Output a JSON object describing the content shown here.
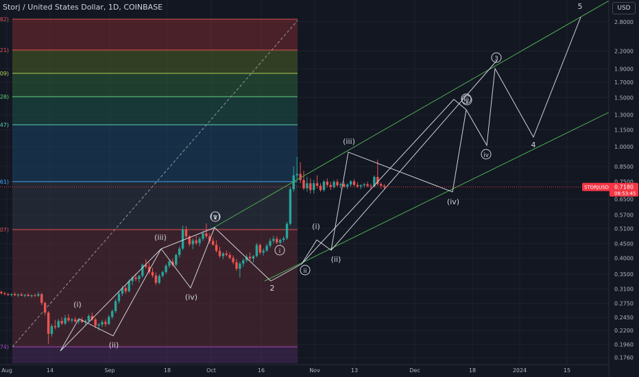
{
  "title": "Storj / United States Dollar, 1D, COINBASE",
  "currency": "USD",
  "chart_data": {
    "type": "candlestick",
    "symbol": "STORJUSD",
    "last_price": "0.7180",
    "countdown": "08:53:45",
    "y_scale": "log",
    "ylim": [
      0.166,
      3.35
    ],
    "price_ticks": [
      "2.8000",
      "2.2000",
      "1.9000",
      "1.7000",
      "1.5000",
      "1.3000",
      "1.1500",
      "1.0000",
      "0.8500",
      "0.7500",
      "0.6500",
      "0.5700",
      "0.5100",
      "0.4500",
      "0.4000",
      "0.3500",
      "0.3100",
      "0.2750",
      "0.2450",
      "0.2200",
      "0.1960",
      "0.1760"
    ],
    "date_ticks": [
      "Aug",
      "14",
      "Sep",
      "18",
      "Oct",
      "16",
      "Nov",
      "13",
      "Dec",
      "18",
      "2024",
      "15"
    ],
    "fib_labels": [
      "082)",
      "921)",
      "409)",
      "028)",
      "947)",
      "561)",
      "107)",
      "974)"
    ],
    "candles": [
      [
        0.302,
        0.306,
        0.296,
        0.299
      ],
      [
        0.299,
        0.303,
        0.294,
        0.297
      ],
      [
        0.297,
        0.3,
        0.292,
        0.295
      ],
      [
        0.295,
        0.299,
        0.291,
        0.297
      ],
      [
        0.297,
        0.301,
        0.293,
        0.294
      ],
      [
        0.294,
        0.298,
        0.29,
        0.296
      ],
      [
        0.296,
        0.3,
        0.292,
        0.293
      ],
      [
        0.293,
        0.297,
        0.289,
        0.295
      ],
      [
        0.295,
        0.299,
        0.291,
        0.292
      ],
      [
        0.292,
        0.296,
        0.288,
        0.294
      ],
      [
        0.294,
        0.298,
        0.29,
        0.293
      ],
      [
        0.293,
        0.302,
        0.29,
        0.297
      ],
      [
        0.297,
        0.3,
        0.271,
        0.276
      ],
      [
        0.276,
        0.279,
        0.249,
        0.255
      ],
      [
        0.255,
        0.258,
        0.197,
        0.214
      ],
      [
        0.214,
        0.232,
        0.209,
        0.228
      ],
      [
        0.228,
        0.24,
        0.222,
        0.226
      ],
      [
        0.226,
        0.242,
        0.224,
        0.238
      ],
      [
        0.238,
        0.245,
        0.23,
        0.233
      ],
      [
        0.233,
        0.25,
        0.23,
        0.244
      ],
      [
        0.244,
        0.252,
        0.236,
        0.239
      ],
      [
        0.239,
        0.244,
        0.234,
        0.241
      ],
      [
        0.241,
        0.246,
        0.235,
        0.237
      ],
      [
        0.237,
        0.242,
        0.232,
        0.24
      ],
      [
        0.24,
        0.245,
        0.234,
        0.236
      ],
      [
        0.236,
        0.241,
        0.23,
        0.238
      ],
      [
        0.238,
        0.252,
        0.236,
        0.248
      ],
      [
        0.248,
        0.255,
        0.238,
        0.241
      ],
      [
        0.241,
        0.244,
        0.224,
        0.229
      ],
      [
        0.229,
        0.234,
        0.22,
        0.231
      ],
      [
        0.231,
        0.24,
        0.226,
        0.236
      ],
      [
        0.236,
        0.241,
        0.227,
        0.232
      ],
      [
        0.232,
        0.25,
        0.23,
        0.246
      ],
      [
        0.246,
        0.262,
        0.242,
        0.258
      ],
      [
        0.258,
        0.285,
        0.254,
        0.28
      ],
      [
        0.28,
        0.305,
        0.275,
        0.298
      ],
      [
        0.298,
        0.318,
        0.292,
        0.312
      ],
      [
        0.312,
        0.318,
        0.298,
        0.304
      ],
      [
        0.304,
        0.335,
        0.301,
        0.33
      ],
      [
        0.33,
        0.345,
        0.32,
        0.34
      ],
      [
        0.34,
        0.352,
        0.33,
        0.336
      ],
      [
        0.336,
        0.348,
        0.326,
        0.345
      ],
      [
        0.345,
        0.382,
        0.34,
        0.378
      ],
      [
        0.378,
        0.396,
        0.366,
        0.372
      ],
      [
        0.372,
        0.385,
        0.35,
        0.356
      ],
      [
        0.356,
        0.368,
        0.34,
        0.346
      ],
      [
        0.346,
        0.355,
        0.32,
        0.326
      ],
      [
        0.326,
        0.35,
        0.322,
        0.345
      ],
      [
        0.345,
        0.36,
        0.34,
        0.356
      ],
      [
        0.356,
        0.38,
        0.35,
        0.375
      ],
      [
        0.375,
        0.395,
        0.368,
        0.388
      ],
      [
        0.388,
        0.398,
        0.372,
        0.378
      ],
      [
        0.378,
        0.415,
        0.372,
        0.41
      ],
      [
        0.41,
        0.44,
        0.402,
        0.432
      ],
      [
        0.432,
        0.522,
        0.426,
        0.505
      ],
      [
        0.505,
        0.52,
        0.47,
        0.478
      ],
      [
        0.478,
        0.482,
        0.44,
        0.448
      ],
      [
        0.448,
        0.47,
        0.43,
        0.462
      ],
      [
        0.462,
        0.48,
        0.445,
        0.452
      ],
      [
        0.452,
        0.476,
        0.44,
        0.468
      ],
      [
        0.468,
        0.5,
        0.46,
        0.49
      ],
      [
        0.49,
        0.532,
        0.47,
        0.478
      ],
      [
        0.478,
        0.49,
        0.45,
        0.46
      ],
      [
        0.46,
        0.472,
        0.442,
        0.446
      ],
      [
        0.446,
        0.462,
        0.418,
        0.424
      ],
      [
        0.424,
        0.438,
        0.4,
        0.406
      ],
      [
        0.406,
        0.42,
        0.396,
        0.415
      ],
      [
        0.415,
        0.425,
        0.405,
        0.41
      ],
      [
        0.41,
        0.418,
        0.395,
        0.4
      ],
      [
        0.4,
        0.408,
        0.38,
        0.386
      ],
      [
        0.386,
        0.396,
        0.36,
        0.366
      ],
      [
        0.366,
        0.388,
        0.34,
        0.382
      ],
      [
        0.382,
        0.398,
        0.372,
        0.392
      ],
      [
        0.392,
        0.412,
        0.386,
        0.404
      ],
      [
        0.404,
        0.418,
        0.392,
        0.398
      ],
      [
        0.398,
        0.41,
        0.385,
        0.406
      ],
      [
        0.406,
        0.452,
        0.402,
        0.445
      ],
      [
        0.445,
        0.45,
        0.412,
        0.418
      ],
      [
        0.418,
        0.432,
        0.408,
        0.425
      ],
      [
        0.425,
        0.45,
        0.42,
        0.442
      ],
      [
        0.442,
        0.47,
        0.436,
        0.46
      ],
      [
        0.46,
        0.48,
        0.45,
        0.468
      ],
      [
        0.468,
        0.478,
        0.448,
        0.454
      ],
      [
        0.454,
        0.47,
        0.446,
        0.464
      ],
      [
        0.464,
        0.478,
        0.455,
        0.47
      ],
      [
        0.47,
        0.538,
        0.464,
        0.53
      ],
      [
        0.53,
        0.72,
        0.524,
        0.705
      ],
      [
        0.705,
        0.85,
        0.69,
        0.79
      ],
      [
        0.79,
        0.92,
        0.76,
        0.8
      ],
      [
        0.8,
        0.88,
        0.74,
        0.76
      ],
      [
        0.76,
        0.82,
        0.7,
        0.71
      ],
      [
        0.71,
        0.78,
        0.69,
        0.74
      ],
      [
        0.74,
        0.77,
        0.68,
        0.7
      ],
      [
        0.7,
        0.76,
        0.68,
        0.74
      ],
      [
        0.74,
        0.79,
        0.71,
        0.725
      ],
      [
        0.725,
        0.74,
        0.69,
        0.7
      ],
      [
        0.7,
        0.76,
        0.69,
        0.75
      ],
      [
        0.75,
        0.77,
        0.715,
        0.73
      ],
      [
        0.73,
        0.75,
        0.7,
        0.718
      ],
      [
        0.718,
        0.76,
        0.708,
        0.748
      ],
      [
        0.748,
        0.765,
        0.72,
        0.728
      ],
      [
        0.728,
        0.745,
        0.71,
        0.735
      ],
      [
        0.735,
        0.75,
        0.712,
        0.72
      ],
      [
        0.72,
        0.74,
        0.705,
        0.732
      ],
      [
        0.732,
        0.76,
        0.72,
        0.752
      ],
      [
        0.752,
        0.765,
        0.722,
        0.73
      ],
      [
        0.73,
        0.745,
        0.712,
        0.722
      ],
      [
        0.722,
        0.735,
        0.705,
        0.728
      ],
      [
        0.728,
        0.742,
        0.714,
        0.734
      ],
      [
        0.734,
        0.748,
        0.716,
        0.724
      ],
      [
        0.724,
        0.738,
        0.708,
        0.72
      ],
      [
        0.72,
        0.79,
        0.715,
        0.78
      ],
      [
        0.78,
        0.9,
        0.725,
        0.735
      ],
      [
        0.735,
        0.745,
        0.708,
        0.725
      ],
      [
        0.725,
        0.735,
        0.705,
        0.718
      ]
    ],
    "wave_labels": [
      {
        "text": "(i)",
        "circled": false
      },
      {
        "text": "(ii)",
        "circled": false
      },
      {
        "text": "(iii)",
        "circled": false
      },
      {
        "text": "(iv)",
        "circled": false
      },
      {
        "text": "(v)",
        "circled": false
      },
      {
        "text": "1",
        "circled": true
      },
      {
        "text": "2",
        "circled": false
      },
      {
        "text": "i",
        "circled": true
      },
      {
        "text": "ii",
        "circled": true
      },
      {
        "text": "(i)",
        "circled": false
      },
      {
        "text": "(ii)",
        "circled": false
      },
      {
        "text": "(iii)",
        "circled": false
      },
      {
        "text": "(iv)",
        "circled": false
      },
      {
        "text": "iii",
        "circled": true
      },
      {
        "text": "iv",
        "circled": true
      },
      {
        "text": "v",
        "circled": true
      },
      {
        "text": "3",
        "circled": true
      },
      {
        "text": "4",
        "circled": false
      },
      {
        "text": "5",
        "circled": false
      }
    ]
  },
  "colors": {
    "background": "#131722",
    "up": "#26a69a",
    "down": "#ef5350",
    "grid": "#1e222d",
    "channel": "#4caf50",
    "wave_line": "#d1d4dc",
    "axis_text": "#b2b5be",
    "price_label": "#f23645"
  }
}
